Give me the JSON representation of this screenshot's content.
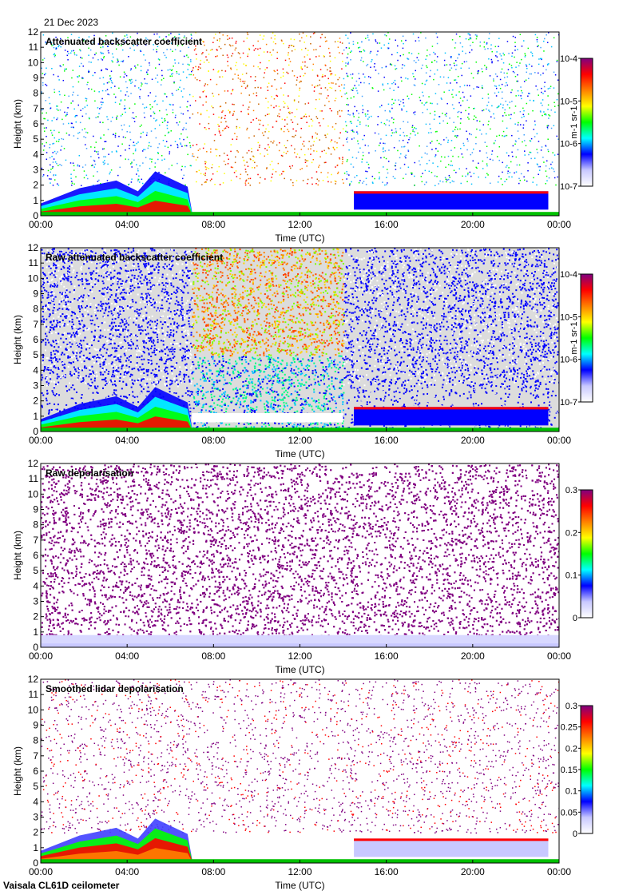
{
  "header": {
    "date": "21 Dec 2023"
  },
  "footer": {
    "instrument": "Vaisala CL61D ceilometer"
  },
  "colors": {
    "rainbow": [
      "#ffffff",
      "#c8c8ff",
      "#0000ff",
      "#00ffff",
      "#00ff00",
      "#ffff00",
      "#ff8000",
      "#ff0000",
      "#800080"
    ],
    "depol_purple": "#800080",
    "gray_noise": "#dcdcdc"
  },
  "chart_data": [
    {
      "type": "heatmap",
      "title": "Attenuated backscatter coefficient",
      "xlabel": "Time (UTC)",
      "ylabel": "Height (km)",
      "xlim": [
        0,
        24
      ],
      "ylim": [
        0,
        12
      ],
      "x_ticks": [
        "00:00",
        "04:00",
        "08:00",
        "12:00",
        "16:00",
        "20:00",
        "00:00"
      ],
      "y_ticks": [
        "0",
        "1",
        "2",
        "3",
        "4",
        "5",
        "6",
        "7",
        "8",
        "9",
        "10",
        "11",
        "12"
      ],
      "colorbar": {
        "scale": "log",
        "ticks": [
          "10-7",
          "10-6",
          "10-5",
          "10-4"
        ],
        "tick_values": [
          -7,
          -6,
          -5,
          -4
        ],
        "unit": "m-1 sr-1"
      }
    },
    {
      "type": "heatmap",
      "title": "Raw attenuated backscatter coefficient",
      "xlabel": "Time (UTC)",
      "ylabel": "Height (km)",
      "xlim": [
        0,
        24
      ],
      "ylim": [
        0,
        12
      ],
      "x_ticks": [
        "00:00",
        "04:00",
        "08:00",
        "12:00",
        "16:00",
        "20:00",
        "00:00"
      ],
      "y_ticks": [
        "0",
        "1",
        "2",
        "3",
        "4",
        "5",
        "6",
        "7",
        "8",
        "9",
        "10",
        "11",
        "12"
      ],
      "colorbar": {
        "scale": "log",
        "ticks": [
          "10-7",
          "10-6",
          "10-5",
          "10-4"
        ],
        "tick_values": [
          -7,
          -6,
          -5,
          -4
        ],
        "unit": "m-1 sr-1"
      }
    },
    {
      "type": "heatmap",
      "title": "Raw depolarisation",
      "xlabel": "Time (UTC)",
      "ylabel": "Height (km)",
      "xlim": [
        0,
        24
      ],
      "ylim": [
        0,
        12
      ],
      "x_ticks": [
        "00:00",
        "04:00",
        "08:00",
        "12:00",
        "16:00",
        "20:00",
        "00:00"
      ],
      "y_ticks": [
        "0",
        "1",
        "2",
        "3",
        "4",
        "5",
        "6",
        "7",
        "8",
        "9",
        "10",
        "11",
        "12"
      ],
      "colorbar": {
        "scale": "linear",
        "ticks": [
          "0",
          "0.1",
          "0.2",
          "0.3"
        ],
        "tick_values": [
          0,
          0.1,
          0.2,
          0.3
        ]
      }
    },
    {
      "type": "heatmap",
      "title": "Smoothed lidar depolarisation",
      "xlabel": "Time (UTC)",
      "ylabel": "Height (km)",
      "xlim": [
        0,
        24
      ],
      "ylim": [
        0,
        12
      ],
      "x_ticks": [
        "00:00",
        "04:00",
        "08:00",
        "12:00",
        "16:00",
        "20:00",
        "00:00"
      ],
      "y_ticks": [
        "0",
        "1",
        "2",
        "3",
        "4",
        "5",
        "6",
        "7",
        "8",
        "9",
        "10",
        "11",
        "12"
      ],
      "colorbar": {
        "scale": "linear",
        "ticks": [
          "0",
          "0.05",
          "0.1",
          "0.15",
          "0.2",
          "0.25",
          "0.3"
        ],
        "tick_values": [
          0,
          0.05,
          0.1,
          0.15,
          0.2,
          0.25,
          0.3
        ]
      }
    }
  ]
}
